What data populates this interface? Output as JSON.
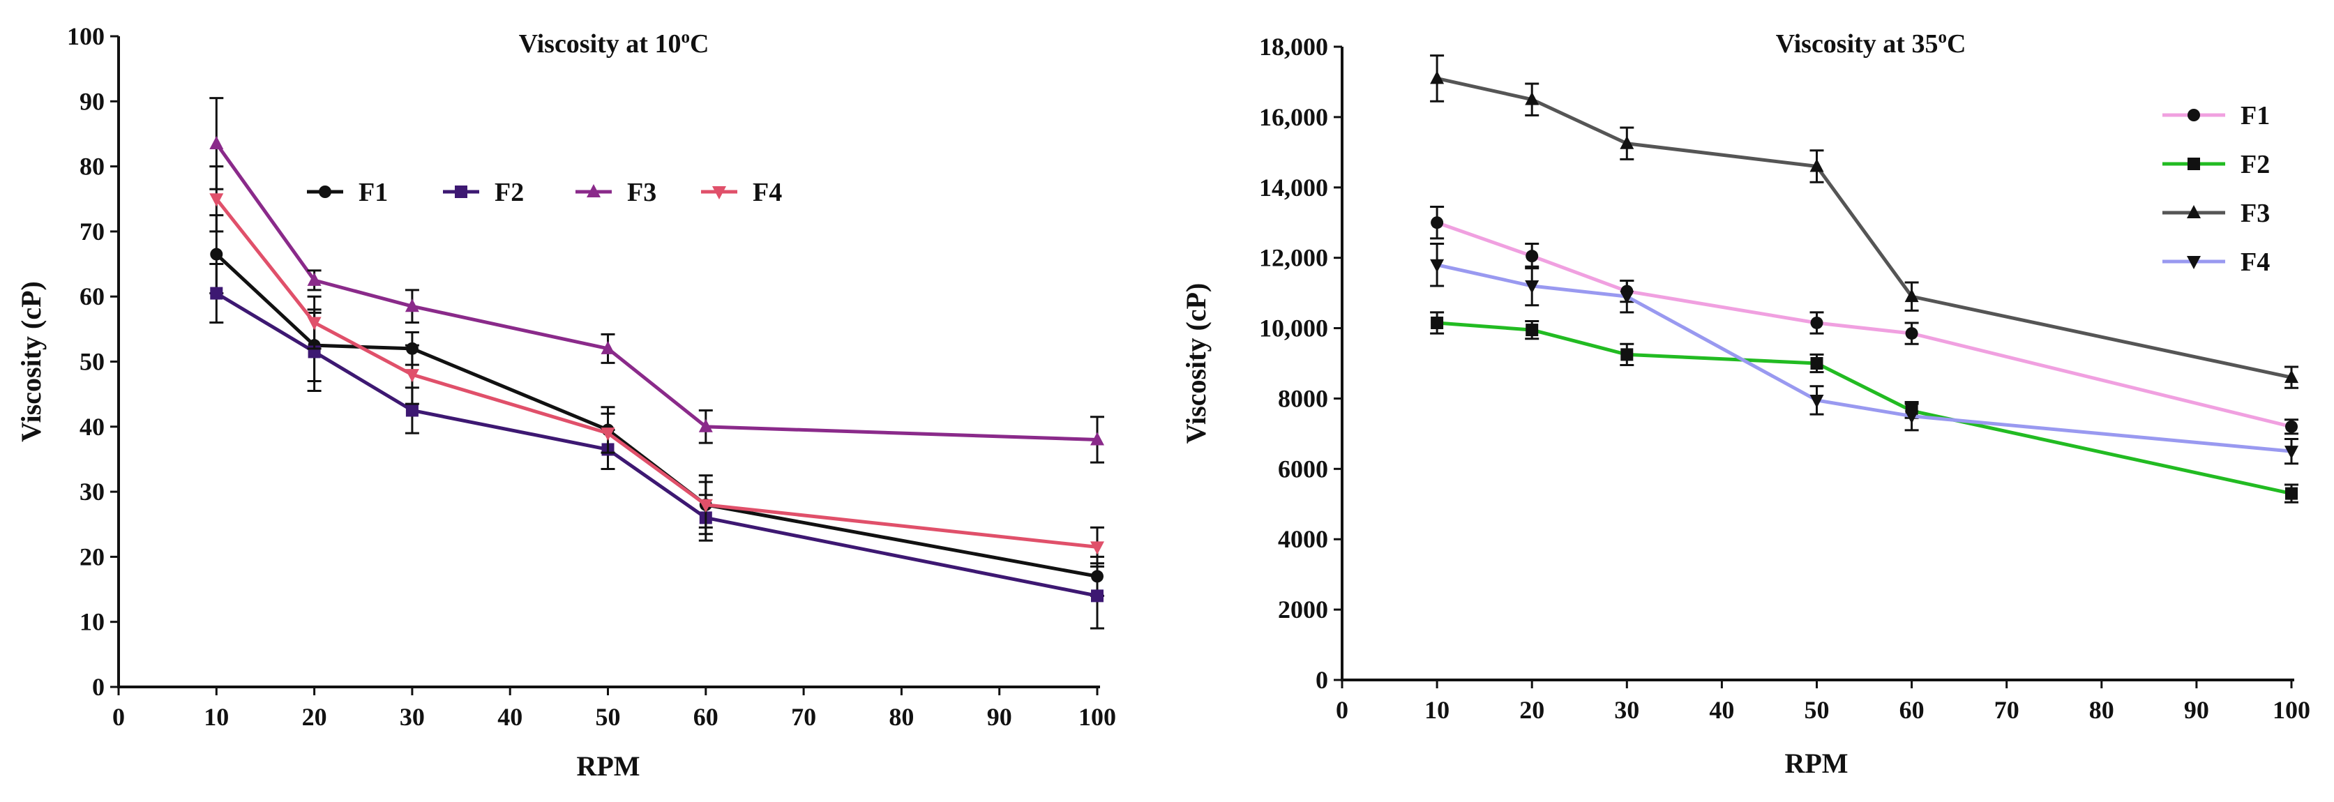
{
  "chart_data": [
    {
      "type": "line",
      "title": "Viscosity at 10",
      "title_degree": "o",
      "title_unit": "C",
      "xlabel": "RPM",
      "ylabel": "Viscosity (cP)",
      "xlim": [
        0,
        100
      ],
      "ylim": [
        0,
        100
      ],
      "xticks": [
        "0",
        "10",
        "20",
        "30",
        "40",
        "50",
        "60",
        "70",
        "80",
        "90",
        "100"
      ],
      "yticks": [
        "0",
        "10",
        "20",
        "30",
        "40",
        "50",
        "60",
        "70",
        "80",
        "90",
        "100"
      ],
      "grid": false,
      "legend_position": "top-center",
      "x": [
        10,
        20,
        30,
        50,
        60,
        100
      ],
      "series": [
        {
          "name": "F1",
          "color": "#111111",
          "marker": "circle",
          "values": [
            66.5,
            52.5,
            52,
            39.5,
            28,
            17
          ],
          "errors": [
            6,
            5.5,
            2.5,
            3.5,
            4.5,
            3
          ]
        },
        {
          "name": "F2",
          "color": "#3d1872",
          "marker": "square",
          "values": [
            60.5,
            51.5,
            42.5,
            36.5,
            26,
            14
          ],
          "errors": [
            4.5,
            6,
            3.5,
            3,
            3.5,
            5
          ]
        },
        {
          "name": "F3",
          "color": "#8a2a8a",
          "marker": "triangle-up",
          "values": [
            83.5,
            62.5,
            58.5,
            52,
            40,
            38
          ],
          "errors": [
            7,
            1.5,
            2.5,
            2.2,
            2.5,
            3.5
          ]
        },
        {
          "name": "F4",
          "color": "#e0506a",
          "marker": "triangle-down",
          "values": [
            75,
            56,
            48,
            39,
            28,
            21.5
          ],
          "errors": [
            5,
            4,
            4.5,
            3,
            3.5,
            3
          ]
        }
      ]
    },
    {
      "type": "line",
      "title": "Viscosity at 35",
      "title_degree": "o",
      "title_unit": "C",
      "xlabel": "RPM",
      "ylabel": "Viscosity (cP)",
      "xlim": [
        0,
        100
      ],
      "ylim": [
        0,
        18000
      ],
      "xticks": [
        "0",
        "10",
        "20",
        "30",
        "40",
        "50",
        "60",
        "70",
        "80",
        "90",
        "100"
      ],
      "yticks": [
        "0",
        "2000",
        "4000",
        "6000",
        "8000",
        "10,000",
        "12,000",
        "14,000",
        "16,000",
        "18,000"
      ],
      "grid": false,
      "legend_position": "top-right",
      "x": [
        10,
        20,
        30,
        50,
        60,
        100
      ],
      "series": [
        {
          "name": "F1",
          "color": "#f0a0e0",
          "marker": "circle",
          "values": [
            13000,
            12050,
            11050,
            10150,
            9850,
            7200
          ],
          "errors": [
            450,
            350,
            300,
            300,
            300,
            200
          ]
        },
        {
          "name": "F2",
          "color": "#22bb22",
          "marker": "square",
          "values": [
            10150,
            9950,
            9250,
            9000,
            7650,
            5300
          ],
          "errors": [
            300,
            250,
            300,
            250,
            200,
            250
          ]
        },
        {
          "name": "F3",
          "color": "#555555",
          "marker": "triangle-up",
          "values": [
            17100,
            16500,
            15250,
            14600,
            10900,
            8600
          ],
          "errors": [
            650,
            450,
            450,
            450,
            400,
            300
          ]
        },
        {
          "name": "F4",
          "color": "#9999f0",
          "marker": "triangle-down",
          "values": [
            11800,
            11200,
            10900,
            7950,
            7500,
            6500
          ],
          "errors": [
            600,
            550,
            450,
            400,
            400,
            350
          ]
        }
      ]
    }
  ]
}
